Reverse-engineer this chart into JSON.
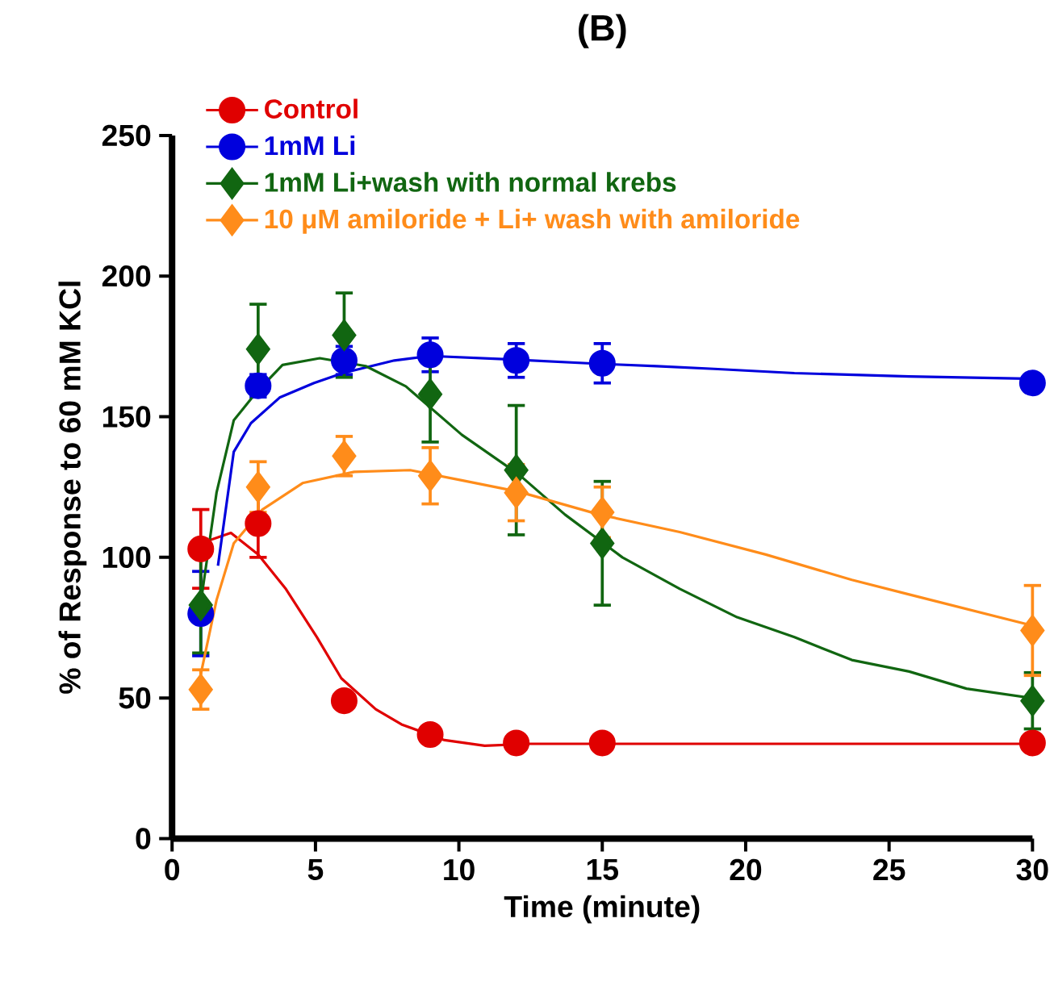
{
  "chart_data": {
    "type": "scatter",
    "title": "(B)",
    "xlabel": "Time (minute)",
    "ylabel": "% of Response to 60 mM KCl",
    "xlim": [
      0,
      30
    ],
    "ylim": [
      0,
      250
    ],
    "xticks": [
      0,
      5,
      10,
      15,
      20,
      25,
      30
    ],
    "yticks": [
      0,
      50,
      100,
      150,
      200,
      250
    ],
    "grid": false,
    "legend": "top left",
    "series": [
      {
        "name": "Control",
        "color": "#e00000",
        "marker": "circle",
        "x": [
          1,
          3,
          6,
          9,
          12,
          15,
          30
        ],
        "values": [
          103,
          112,
          49,
          37,
          34,
          34,
          34
        ],
        "errors": [
          14,
          12,
          null,
          null,
          null,
          null,
          null
        ]
      },
      {
        "name": "1mM Li",
        "color": "#0000dd",
        "marker": "circle",
        "x": [
          1,
          3,
          6,
          9,
          12,
          15,
          30
        ],
        "values": [
          80,
          161,
          170,
          172,
          170,
          169,
          162
        ],
        "errors": [
          15,
          4,
          5,
          6,
          6,
          7,
          null
        ]
      },
      {
        "name": "1mM Li+wash with normal krebs",
        "color": "#116611",
        "marker": "diamond",
        "x": [
          1,
          3,
          6,
          9,
          12,
          15,
          30
        ],
        "values": [
          83,
          174,
          179,
          158,
          131,
          105,
          49
        ],
        "errors": [
          17,
          16,
          15,
          17,
          23,
          22,
          10
        ]
      },
      {
        "name": "10 μM amiloride + Li+ wash with amiloride",
        "color": "#ff8c1a",
        "marker": "diamond",
        "x": [
          1,
          3,
          6,
          9,
          12,
          15,
          30
        ],
        "values": [
          53,
          125,
          136,
          129,
          123,
          116,
          74
        ],
        "errors": [
          7,
          9,
          7,
          10,
          10,
          9,
          16
        ]
      },
      {
        "type": "line",
        "color": "#e00000",
        "marker": "none",
        "line_style": "solid",
        "x": [
          1,
          2.05,
          3,
          3.95,
          5.05,
          5.9,
          7.1,
          8,
          9.5,
          10.9,
          12.5,
          30
        ],
        "values": [
          105,
          108.7,
          101,
          89,
          71.6,
          57,
          46,
          40.6,
          35,
          33,
          33.7,
          33.7
        ]
      },
      {
        "type": "line",
        "color": "#0000dd",
        "marker": "none",
        "line_style": "solid",
        "x": [
          1.6,
          2.15,
          2.75,
          3.75,
          4.95,
          5.95,
          7.75,
          9,
          11.7,
          14.9,
          16.9,
          18.9,
          21.7,
          25.7,
          30
        ],
        "values": [
          97,
          137.5,
          147.7,
          156.8,
          162,
          165.5,
          170,
          171.6,
          170.4,
          168.8,
          168,
          167,
          165.5,
          164.3,
          163.5
        ]
      },
      {
        "type": "line",
        "color": "#116611",
        "marker": "none",
        "line_style": "solid",
        "x": [
          1,
          1.55,
          2.15,
          2.95,
          3.85,
          5.15,
          6.75,
          8.15,
          10.1,
          12.1,
          13.7,
          15.7,
          17.7,
          19.7,
          21.7,
          23.7,
          25.7,
          27.7,
          30
        ],
        "values": [
          83.8,
          123,
          148.7,
          158.8,
          168.4,
          170.8,
          168,
          160.8,
          143.6,
          129.4,
          115.2,
          100,
          88.8,
          78.7,
          71.6,
          63.5,
          59.4,
          53.3,
          49.9
        ]
      },
      {
        "type": "line",
        "color": "#ff8c1a",
        "marker": "none",
        "line_style": "solid",
        "x": [
          1,
          1.55,
          2.15,
          3.15,
          4.55,
          6.35,
          8.3,
          10.1,
          12.1,
          14.9,
          17.7,
          20.7,
          23.7,
          25.7,
          30
        ],
        "values": [
          58.4,
          84.8,
          105,
          117,
          126.4,
          130.4,
          131,
          127.4,
          123.3,
          115.2,
          109,
          101,
          92,
          86.8,
          75.7
        ]
      }
    ]
  }
}
